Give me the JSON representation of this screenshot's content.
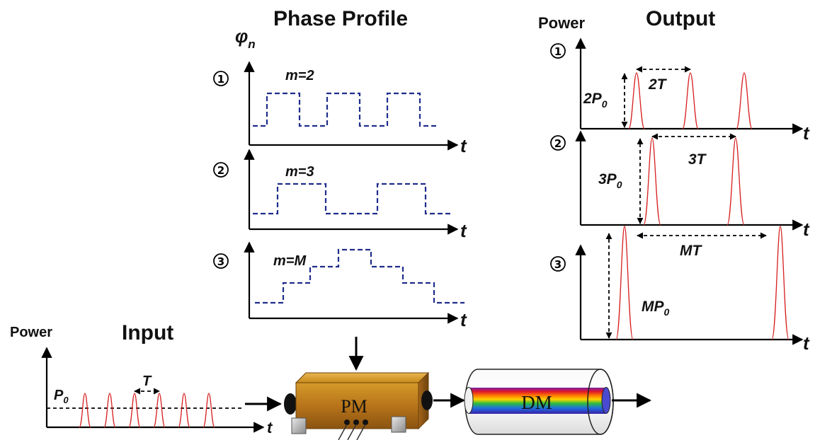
{
  "phase_panel": {
    "title": "Phase Profile",
    "y_symbol": "φ",
    "y_sub": "n",
    "rows": [
      {
        "marker": "1",
        "label": "m=2",
        "t": "t"
      },
      {
        "marker": "2",
        "label": "m=3",
        "t": "t"
      },
      {
        "marker": "3",
        "label": "m=M",
        "t": "t"
      }
    ]
  },
  "output_panel": {
    "title": "Output",
    "y_label": "Power",
    "rows": [
      {
        "marker": "1",
        "power_label": "2P",
        "power_sub": "0",
        "period_label": "2T",
        "t": "t"
      },
      {
        "marker": "2",
        "power_label": "3P",
        "power_sub": "0",
        "period_label": "3T",
        "t": "t"
      },
      {
        "marker": "3",
        "power_label": "MP",
        "power_sub": "0",
        "period_label": "MT",
        "t": "t"
      }
    ]
  },
  "input_panel": {
    "title": "Input",
    "y_label": "Power",
    "power_label": "P",
    "power_sub": "0",
    "period_label": "T",
    "t": "t"
  },
  "devices": {
    "phase_modulator": "PM",
    "dispersive_medium": "DM"
  },
  "colors": {
    "phase_line": "#1f2d8c",
    "pulse": "#d61f1f",
    "pm_body": "#c98a1a"
  }
}
